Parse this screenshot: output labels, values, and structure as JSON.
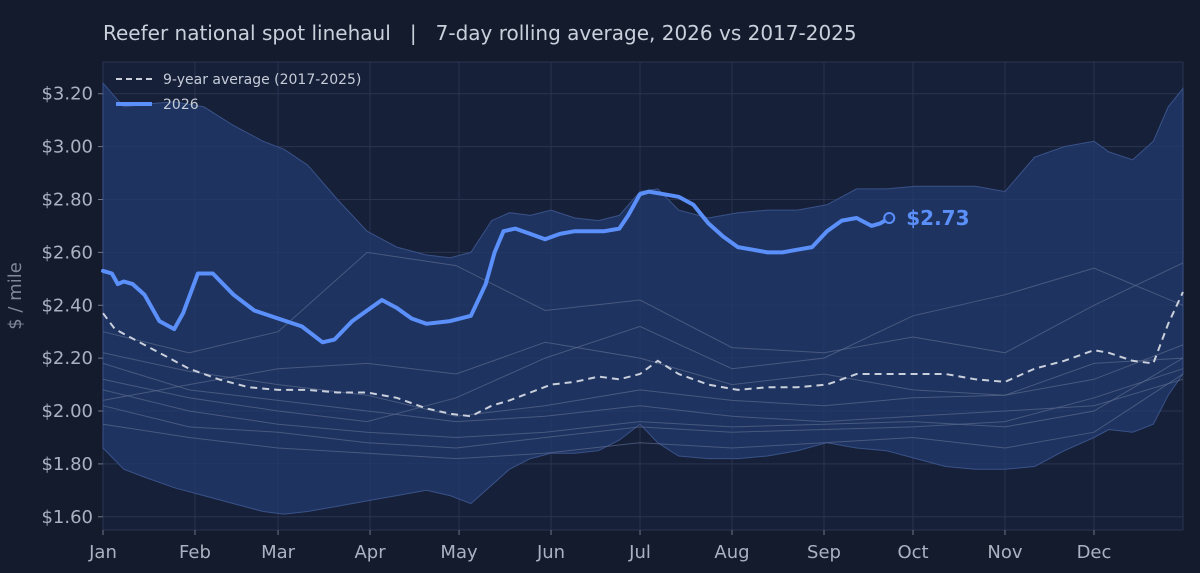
{
  "chart_data": {
    "type": "line",
    "title": "Reefer national spot linehaul   |   7-day rolling average, 2026 vs 2017-2025",
    "ylabel": "$ / mile",
    "xlabel": "",
    "x_unit": "day of year",
    "xlim": [
      1,
      365
    ],
    "ylim": [
      1.55,
      3.32
    ],
    "y_ticks": [
      1.6,
      1.8,
      2.0,
      2.2,
      2.4,
      2.6,
      2.8,
      3.0,
      3.2
    ],
    "y_tick_labels": [
      "$1.60",
      "$1.80",
      "$2.00",
      "$2.20",
      "$2.40",
      "$2.60",
      "$2.80",
      "$3.00",
      "$3.20"
    ],
    "x_ticks": [
      1,
      32,
      60,
      91,
      121,
      152,
      182,
      213,
      244,
      274,
      305,
      335
    ],
    "x_tick_labels": [
      "Jan",
      "Feb",
      "Mar",
      "Apr",
      "May",
      "Jun",
      "Jul",
      "Aug",
      "Sep",
      "Oct",
      "Nov",
      "Dec"
    ],
    "grid": true,
    "legend_position": "top-left",
    "legend": [
      "9-year average (2017-2025)",
      "2026"
    ],
    "end_label": "$2.73",
    "colors": {
      "background": "#141b2d",
      "plot_background": "#162039",
      "band_fill": "#223a6e",
      "accent_2026": "#5b8ff9",
      "average_line": "#c9cfdb",
      "history_lines": "#5a6a8c",
      "grid": "#2a3450",
      "text": "#aab2c2"
    },
    "range_band": {
      "name": "2017-2025 range",
      "x": [
        1,
        8,
        15,
        25,
        35,
        45,
        55,
        62,
        70,
        80,
        90,
        100,
        110,
        118,
        125,
        132,
        138,
        145,
        152,
        160,
        168,
        175,
        182,
        188,
        195,
        205,
        215,
        225,
        235,
        245,
        255,
        265,
        275,
        285,
        295,
        305,
        315,
        325,
        335,
        340,
        348,
        355,
        360,
        365
      ],
      "upper": [
        3.24,
        3.15,
        3.16,
        3.17,
        3.15,
        3.08,
        3.02,
        2.99,
        2.93,
        2.8,
        2.68,
        2.62,
        2.59,
        2.58,
        2.6,
        2.72,
        2.75,
        2.74,
        2.76,
        2.73,
        2.72,
        2.74,
        2.83,
        2.84,
        2.76,
        2.73,
        2.75,
        2.76,
        2.76,
        2.78,
        2.84,
        2.84,
        2.85,
        2.85,
        2.85,
        2.83,
        2.96,
        3.0,
        3.02,
        2.98,
        2.95,
        3.02,
        3.15,
        3.22
      ],
      "lower": [
        1.86,
        1.78,
        1.75,
        1.71,
        1.68,
        1.65,
        1.62,
        1.61,
        1.62,
        1.64,
        1.66,
        1.68,
        1.7,
        1.68,
        1.65,
        1.72,
        1.78,
        1.82,
        1.84,
        1.84,
        1.85,
        1.89,
        1.95,
        1.88,
        1.83,
        1.82,
        1.82,
        1.83,
        1.85,
        1.88,
        1.86,
        1.85,
        1.82,
        1.79,
        1.78,
        1.78,
        1.79,
        1.85,
        1.9,
        1.93,
        1.92,
        1.95,
        2.06,
        2.14
      ]
    },
    "series": [
      {
        "name": "9-year average (2017-2025)",
        "style": "dashed",
        "x": [
          1,
          5,
          10,
          20,
          30,
          40,
          50,
          60,
          70,
          80,
          90,
          100,
          110,
          118,
          125,
          132,
          138,
          145,
          152,
          160,
          168,
          175,
          182,
          188,
          195,
          205,
          215,
          225,
          235,
          245,
          255,
          265,
          275,
          285,
          295,
          305,
          315,
          325,
          335,
          340,
          348,
          355,
          360,
          365
        ],
        "values": [
          2.37,
          2.31,
          2.28,
          2.22,
          2.16,
          2.12,
          2.09,
          2.08,
          2.08,
          2.07,
          2.07,
          2.05,
          2.01,
          1.99,
          1.98,
          2.02,
          2.04,
          2.07,
          2.1,
          2.11,
          2.13,
          2.12,
          2.14,
          2.19,
          2.14,
          2.1,
          2.08,
          2.09,
          2.09,
          2.1,
          2.14,
          2.14,
          2.14,
          2.14,
          2.12,
          2.11,
          2.16,
          2.19,
          2.23,
          2.22,
          2.19,
          2.18,
          2.33,
          2.45
        ]
      },
      {
        "name": "2026",
        "style": "solid",
        "x": [
          1,
          4,
          6,
          8,
          11,
          15,
          20,
          25,
          28,
          33,
          38,
          45,
          52,
          60,
          68,
          75,
          79,
          85,
          90,
          95,
          100,
          105,
          110,
          118,
          125,
          130,
          133,
          136,
          140,
          145,
          150,
          155,
          160,
          165,
          170,
          175,
          178,
          182,
          185,
          190,
          195,
          200,
          205,
          210,
          215,
          220,
          225,
          230,
          235,
          240,
          245,
          250,
          255,
          260,
          263,
          266
        ],
        "values": [
          2.53,
          2.52,
          2.48,
          2.49,
          2.48,
          2.44,
          2.34,
          2.31,
          2.37,
          2.52,
          2.52,
          2.44,
          2.38,
          2.35,
          2.32,
          2.26,
          2.27,
          2.34,
          2.38,
          2.42,
          2.39,
          2.35,
          2.33,
          2.34,
          2.36,
          2.48,
          2.6,
          2.68,
          2.69,
          2.67,
          2.65,
          2.67,
          2.68,
          2.68,
          2.68,
          2.69,
          2.74,
          2.82,
          2.83,
          2.82,
          2.81,
          2.78,
          2.71,
          2.66,
          2.62,
          2.61,
          2.6,
          2.6,
          2.61,
          2.62,
          2.68,
          2.72,
          2.73,
          2.7,
          2.71,
          2.73
        ]
      }
    ],
    "historical_lines": [
      {
        "x": [
          1,
          30,
          60,
          90,
          120,
          150,
          182,
          213,
          244,
          274,
          305,
          335,
          365
        ],
        "values": [
          2.18,
          2.08,
          2.04,
          2.0,
          1.96,
          1.98,
          2.02,
          1.98,
          1.96,
          1.98,
          2.0,
          2.02,
          2.12
        ]
      },
      {
        "x": [
          1,
          30,
          60,
          90,
          120,
          150,
          182,
          213,
          244,
          274,
          305,
          335,
          365
        ],
        "values": [
          2.08,
          2.0,
          1.95,
          1.92,
          1.9,
          1.92,
          1.96,
          1.94,
          1.95,
          1.96,
          1.94,
          2.0,
          2.2
        ]
      },
      {
        "x": [
          1,
          30,
          60,
          90,
          120,
          150,
          182,
          213,
          244,
          274,
          305,
          335,
          365
        ],
        "values": [
          2.22,
          2.15,
          2.1,
          2.06,
          1.98,
          2.02,
          2.08,
          2.04,
          2.02,
          2.05,
          2.06,
          2.12,
          2.25
        ]
      },
      {
        "x": [
          1,
          30,
          60,
          90,
          120,
          150,
          182,
          213,
          244,
          274,
          305,
          335,
          365
        ],
        "values": [
          2.02,
          1.94,
          1.92,
          1.88,
          1.86,
          1.9,
          1.94,
          1.92,
          1.93,
          1.94,
          1.96,
          2.05,
          2.16
        ]
      },
      {
        "x": [
          1,
          30,
          60,
          90,
          120,
          150,
          182,
          213,
          244,
          274,
          305,
          335,
          365
        ],
        "values": [
          2.3,
          2.22,
          2.3,
          2.6,
          2.55,
          2.38,
          2.42,
          2.24,
          2.22,
          2.28,
          2.22,
          2.4,
          2.56
        ]
      },
      {
        "x": [
          1,
          30,
          60,
          90,
          120,
          150,
          182,
          213,
          244,
          274,
          305,
          335,
          365
        ],
        "values": [
          1.95,
          1.9,
          1.86,
          1.84,
          1.82,
          1.84,
          1.88,
          1.86,
          1.88,
          1.9,
          1.86,
          1.92,
          2.14
        ]
      },
      {
        "x": [
          1,
          30,
          60,
          90,
          120,
          150,
          182,
          213,
          244,
          274,
          305,
          335,
          365
        ],
        "values": [
          2.12,
          2.05,
          2.0,
          1.96,
          2.05,
          2.2,
          2.32,
          2.16,
          2.2,
          2.36,
          2.44,
          2.54,
          2.4
        ]
      },
      {
        "x": [
          1,
          30,
          60,
          90,
          120,
          150,
          182,
          213,
          244,
          274,
          305,
          335,
          365
        ],
        "values": [
          2.04,
          2.1,
          2.16,
          2.18,
          2.14,
          2.26,
          2.2,
          2.1,
          2.14,
          2.08,
          2.06,
          2.18,
          2.2
        ]
      }
    ]
  }
}
